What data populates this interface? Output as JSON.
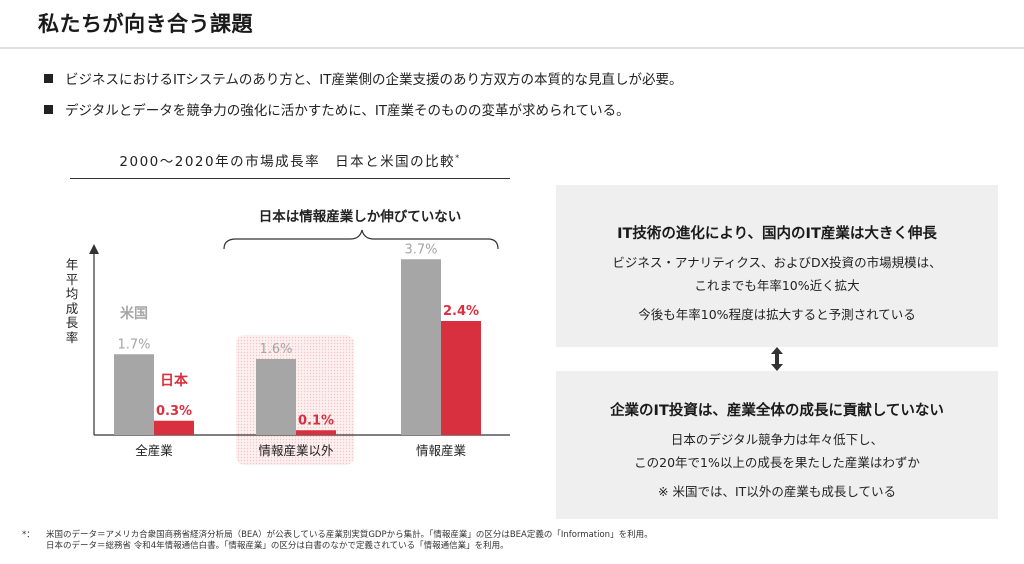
{
  "header": {
    "title": "私たちが向き合う課題"
  },
  "bullets": [
    "ビジネスにおけるITシステムのあり方と、IT産業側の企業支援のあり方双方の本質的な見直しが必要。",
    "デジタルとデータを競争力の強化に活かすために、IT産業そのものの変革が求められている。"
  ],
  "chart_data": {
    "type": "bar",
    "title": "2000～2020年の市場成長率　日本と米国の比較",
    "title_note": "*",
    "ylabel": "年平均成長率",
    "xlabel": "",
    "categories": [
      "全産業",
      "情報産業以外",
      "情報産業"
    ],
    "series": [
      {
        "name": "米国",
        "values": [
          1.7,
          1.6,
          3.7
        ],
        "labels": [
          "1.7%",
          "1.6%",
          "3.7%"
        ],
        "color": "#a6a6a6"
      },
      {
        "name": "日本",
        "values": [
          0.3,
          0.1,
          2.4
        ],
        "labels": [
          "0.3%",
          "0.1%",
          "2.4%"
        ],
        "color": "#d9303f"
      }
    ],
    "ylim": [
      0,
      4.0
    ],
    "brace_annotation": "日本は情報産業しか伸びていない",
    "highlighted_category": "情報産業以外",
    "grid": false
  },
  "panels": {
    "top": {
      "heading": "IT技術の進化により、国内のIT産業は大きく伸長",
      "lines": [
        "ビジネス・アナリティクス、およびDX投資の市場規模は、",
        "これまでも年率10%近く拡大",
        "今後も年率10%程度は拡大すると予測されている"
      ]
    },
    "arrow_icon": "double-vertical-arrow",
    "bottom": {
      "heading": "企業のIT投資は、産業全体の成長に貢献していない",
      "lines": [
        "日本のデジタル競争力は年々低下し、",
        "この20年で1%以上の成長を果たした産業はわずか",
        "※ 米国では、IT以外の産業も成長している"
      ]
    }
  },
  "footnote": {
    "mark": "*：",
    "lines": [
      "米国のデータ＝アメリカ合衆国商務省経済分析局（BEA）が公表している産業別実質GDPから集計。「情報産業」の区分はBEA定義の「Information」を利用。",
      "日本のデータ＝総務省 令和4年情報通信白書。「情報産業」の区分は白書のなかで定義されている「情報通信業」を利用。"
    ]
  },
  "colors": {
    "us": "#a6a6a6",
    "japan": "#d9303f",
    "panel_bg": "#efefef",
    "highlight": "#fbe3e3"
  }
}
